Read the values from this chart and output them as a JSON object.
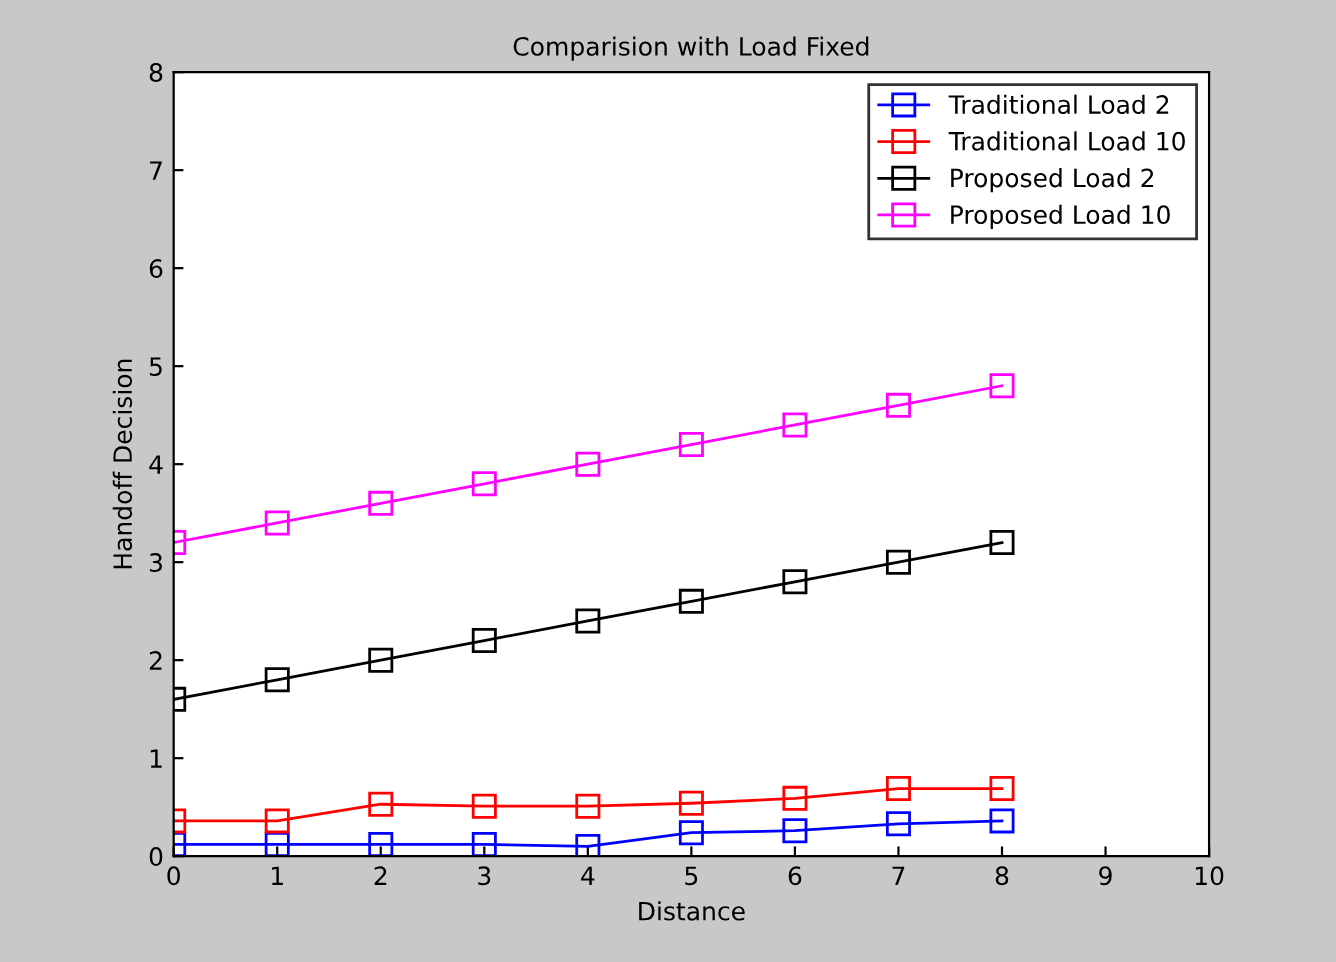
{
  "chart_data": {
    "type": "line",
    "title": "Comparision with Load Fixed",
    "xlabel": "Distance",
    "ylabel": "Handoff Decision",
    "x": [
      0,
      1,
      2,
      3,
      4,
      5,
      6,
      7,
      8
    ],
    "series": [
      {
        "name": "Traditional Load 2",
        "color": "#0000ff",
        "values": [
          0.12,
          0.12,
          0.12,
          0.12,
          0.1,
          0.24,
          0.26,
          0.33,
          0.36
        ]
      },
      {
        "name": "Traditional Load 10",
        "color": "#ff0000",
        "values": [
          0.36,
          0.36,
          0.53,
          0.51,
          0.51,
          0.54,
          0.59,
          0.69,
          0.69
        ]
      },
      {
        "name": "Proposed Load 2",
        "color": "#000000",
        "values": [
          1.6,
          1.8,
          2.0,
          2.2,
          2.4,
          2.6,
          2.8,
          3.0,
          3.2
        ]
      },
      {
        "name": "Proposed Load 10",
        "color": "#ff00ff",
        "values": [
          3.2,
          3.4,
          3.6,
          3.8,
          4.0,
          4.2,
          4.4,
          4.6,
          4.8
        ]
      }
    ],
    "xlim": [
      0,
      10
    ],
    "xticks": [
      0,
      1,
      2,
      3,
      4,
      5,
      6,
      7,
      8,
      9,
      10
    ],
    "ylim": [
      0,
      8
    ],
    "yticks": [
      0,
      1,
      2,
      3,
      4,
      5,
      6,
      7,
      8
    ],
    "marker": "square",
    "line_style": "solid",
    "legend": "top right",
    "grid": false
  }
}
